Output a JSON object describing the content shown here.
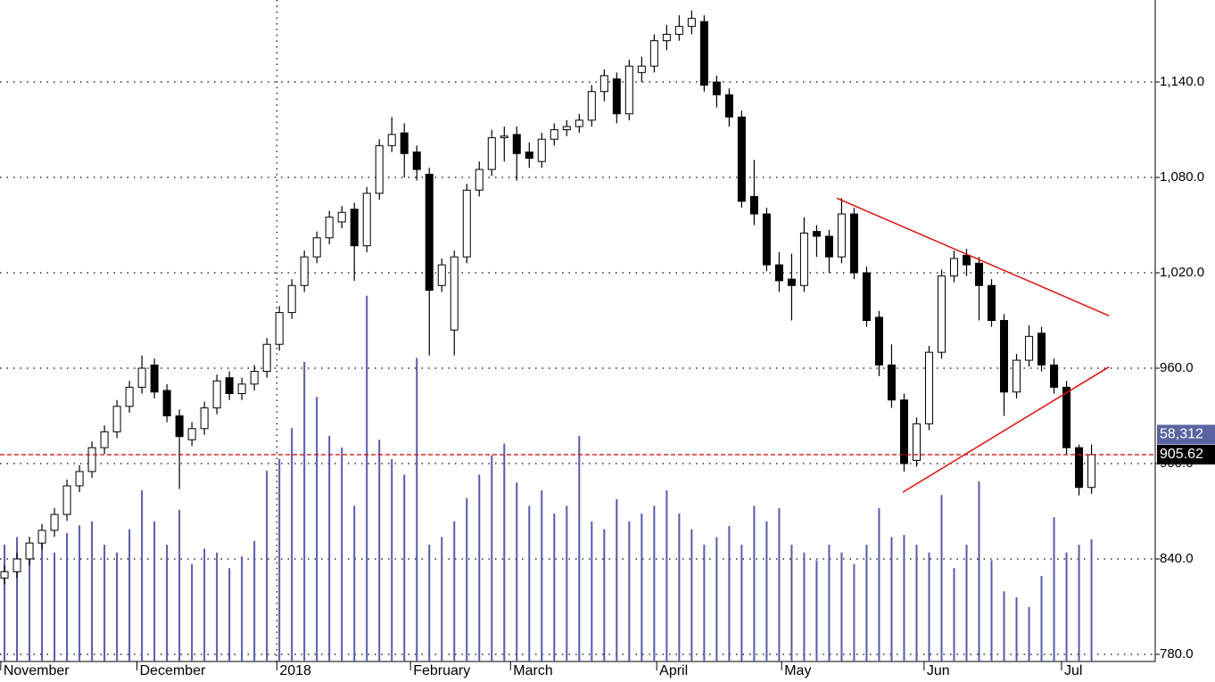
{
  "chart_data": {
    "type": "candlestick",
    "categories": [
      null,
      null,
      null,
      null,
      null,
      null,
      null,
      null,
      null,
      null,
      null,
      null,
      null,
      null,
      null,
      null,
      null,
      null,
      null,
      null,
      null,
      null,
      null,
      null,
      null,
      null,
      null,
      null,
      null,
      null,
      null,
      null,
      null,
      null,
      null,
      null,
      null,
      null,
      null,
      null,
      null,
      null,
      null,
      null,
      null,
      null,
      null,
      null,
      null,
      null,
      null,
      null,
      null,
      null,
      null,
      null,
      null,
      null,
      null,
      null,
      null,
      null,
      null,
      null,
      null,
      null,
      null,
      null,
      null,
      null,
      null,
      null,
      null,
      null,
      null,
      null,
      null,
      null,
      null,
      null,
      null,
      null,
      null,
      null,
      null,
      null,
      null,
      null
    ],
    "open": [
      828,
      832,
      840,
      850,
      858,
      868,
      886,
      895,
      910,
      920,
      936,
      948,
      962,
      946,
      930,
      915,
      922,
      935,
      954,
      944,
      950,
      958,
      975,
      995,
      1012,
      1030,
      1042,
      1052,
      1060,
      1037,
      1070,
      1100,
      1108,
      1096,
      1082,
      1012,
      984,
      1030,
      1072,
      1085,
      1105,
      1107,
      1096,
      1090,
      1104,
      1110,
      1112,
      1116,
      1134,
      1142,
      1120,
      1146,
      1150,
      1166,
      1170,
      1175,
      1178,
      1140,
      1132,
      1118,
      1068,
      1057,
      1025,
      1016,
      1012,
      1046,
      1043,
      1030,
      1057,
      1020,
      992,
      962,
      940,
      902,
      925,
      970,
      1018,
      1031,
      1026,
      1012,
      990,
      945,
      965,
      982,
      962,
      948,
      910,
      885
    ],
    "high": [
      836,
      844,
      854,
      862,
      872,
      890,
      899,
      914,
      924,
      940,
      952,
      968,
      966,
      950,
      934,
      926,
      939,
      956,
      958,
      954,
      962,
      979,
      999,
      1016,
      1034,
      1046,
      1059,
      1062,
      1064,
      1074,
      1104,
      1118,
      1114,
      1100,
      1086,
      1029,
      1034,
      1076,
      1090,
      1110,
      1112,
      1112,
      1102,
      1108,
      1114,
      1116,
      1120,
      1138,
      1148,
      1146,
      1154,
      1156,
      1170,
      1176,
      1182,
      1185,
      1182,
      1144,
      1136,
      1122,
      1091,
      1061,
      1033,
      1032,
      1055,
      1050,
      1047,
      1067,
      1061,
      1024,
      996,
      975,
      944,
      929,
      974,
      1022,
      1034,
      1035,
      1030,
      1016,
      994,
      969,
      987,
      986,
      966,
      952,
      912,
      912
    ],
    "low": [
      824,
      828,
      836,
      846,
      854,
      864,
      882,
      891,
      906,
      916,
      932,
      944,
      941,
      926,
      884,
      911,
      918,
      931,
      940,
      940,
      946,
      954,
      971,
      991,
      1008,
      1026,
      1038,
      1048,
      1015,
      1033,
      1066,
      1096,
      1080,
      1078,
      968,
      1008,
      968,
      1026,
      1068,
      1081,
      1090,
      1078,
      1086,
      1086,
      1100,
      1106,
      1108,
      1112,
      1128,
      1114,
      1116,
      1140,
      1146,
      1160,
      1166,
      1170,
      1134,
      1124,
      1112,
      1061,
      1050,
      1021,
      1008,
      990,
      1008,
      1030,
      1020,
      1026,
      1016,
      986,
      955,
      935,
      895,
      898,
      921,
      966,
      1014,
      1018,
      990,
      986,
      930,
      941,
      961,
      958,
      944,
      906,
      880,
      881
    ],
    "close": [
      832,
      840,
      850,
      858,
      868,
      886,
      895,
      910,
      920,
      936,
      948,
      960,
      945,
      930,
      917,
      922,
      935,
      952,
      944,
      950,
      958,
      975,
      995,
      1012,
      1030,
      1042,
      1055,
      1058,
      1037,
      1070,
      1100,
      1107,
      1095,
      1085,
      1009,
      1025,
      1030,
      1072,
      1085,
      1105,
      1106,
      1095,
      1092,
      1104,
      1110,
      1112,
      1116,
      1134,
      1144,
      1120,
      1150,
      1150,
      1166,
      1170,
      1175,
      1180,
      1138,
      1132,
      1118,
      1065,
      1057,
      1025,
      1015,
      1012,
      1045,
      1043,
      1030,
      1057,
      1020,
      990,
      962,
      940,
      900,
      925,
      970,
      1018,
      1029,
      1025,
      1012,
      990,
      945,
      965,
      980,
      962,
      948,
      910,
      885,
      905.62
    ],
    "volume": [
      30000,
      32000,
      29000,
      31000,
      28000,
      33000,
      35000,
      36000,
      30000,
      28000,
      34000,
      44000,
      36000,
      30000,
      39000,
      25000,
      29000,
      28000,
      24000,
      27000,
      31000,
      49000,
      52000,
      60000,
      77000,
      68000,
      58000,
      55000,
      40000,
      94000,
      57000,
      52000,
      48000,
      78000,
      30000,
      32000,
      36000,
      42000,
      48000,
      53000,
      56000,
      46000,
      40000,
      44000,
      38000,
      40000,
      58000,
      36000,
      34000,
      41700,
      36000,
      38000,
      40000,
      44000,
      38000,
      34000,
      30000,
      32000,
      34800,
      30000,
      40000,
      36000,
      39400,
      30000,
      28000,
      26000,
      30000,
      28000,
      25000,
      30000,
      39400,
      32000,
      32500,
      30000,
      28000,
      42800,
      24000,
      30000,
      46300,
      26000,
      18000,
      16500,
      14000,
      22000,
      37100,
      28000,
      30000,
      31400
    ],
    "up_color": "#ffffff",
    "down_color": "#000000",
    "volume_color": "#5a5aa8",
    "xlim": [
      -0.36,
      92.1
    ],
    "xticks": [
      {
        "value": -0.3,
        "label": "November"
      },
      {
        "value": 10.6,
        "label": "December"
      },
      {
        "value": 21.8,
        "label": "2018",
        "gridline": true
      },
      {
        "value": 32.5,
        "label": "February"
      },
      {
        "value": 40.5,
        "label": "March"
      },
      {
        "value": 52.2,
        "label": "April"
      },
      {
        "value": 62.2,
        "label": "May"
      },
      {
        "value": 73.6,
        "label": "Jun"
      },
      {
        "value": 84.6,
        "label": "Jul"
      }
    ],
    "ylim": [
      775.5,
      1191.6
    ],
    "yticks": [
      {
        "value": 780,
        "label": "780.0"
      },
      {
        "value": 840,
        "label": "840.0"
      },
      {
        "value": 900,
        "label": "900.0"
      },
      {
        "value": 960,
        "label": "960.0"
      },
      {
        "value": 1020,
        "label": "1,020.0"
      },
      {
        "value": 1080,
        "label": "1,080.0"
      },
      {
        "value": 1140,
        "label": "1,140.0"
      }
    ],
    "y2lim": [
      0,
      170000
    ],
    "grid": true,
    "last_price": 905.62,
    "last_price_color": "#d00000",
    "volume_marker": {
      "value": 58312,
      "label": "58,312"
    },
    "volume_marker_color": "#5a64a0",
    "trendlines": [
      {
        "color": "#e01010",
        "x": [
          66.6,
          88.4
        ],
        "y": [
          1067,
          993
        ]
      },
      {
        "color": "#e01010",
        "x": [
          71.9,
          88.4
        ],
        "y": [
          882,
          960.8
        ]
      }
    ]
  }
}
